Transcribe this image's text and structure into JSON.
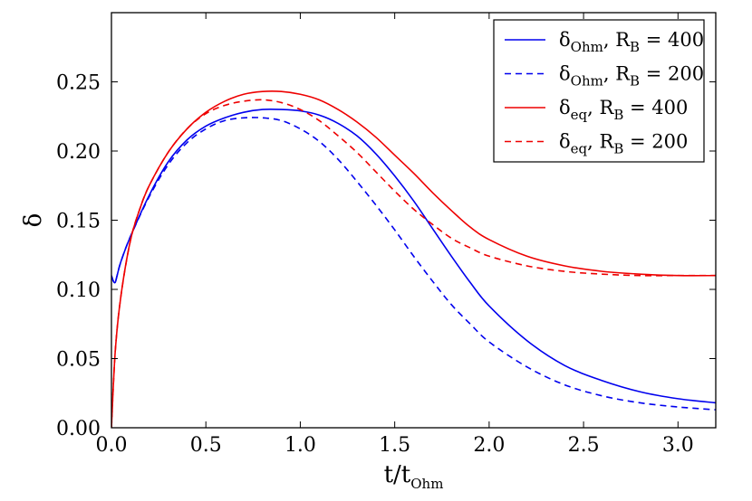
{
  "chart_data": {
    "type": "line",
    "title": "",
    "xlabel": "t/t",
    "xlabel_sub": "Ohm",
    "ylabel": "δ",
    "xlim": [
      0.0,
      3.2
    ],
    "ylim": [
      0.0,
      0.3
    ],
    "xticks": [
      0.0,
      0.5,
      1.0,
      1.5,
      2.0,
      2.5,
      3.0
    ],
    "xtick_labels": [
      "0.0",
      "0.5",
      "1.0",
      "1.5",
      "2.0",
      "2.5",
      "3.0"
    ],
    "yticks": [
      0.0,
      0.05,
      0.1,
      0.15,
      0.2,
      0.25
    ],
    "ytick_labels": [
      "0.00",
      "0.05",
      "0.10",
      "0.15",
      "0.20",
      "0.25"
    ],
    "grid": false,
    "legend_position": "top-right",
    "series": [
      {
        "name": "δOhm, RB = 400",
        "legend": {
          "symbol": "δ",
          "sub": "Ohm",
          "rest": ", R",
          "rest_sub": "B",
          "value": " = 400"
        },
        "color": "#0000ee",
        "dash": "solid",
        "x": [
          0.0,
          0.01,
          0.02,
          0.03,
          0.05,
          0.1,
          0.2,
          0.3,
          0.4,
          0.5,
          0.6,
          0.7,
          0.8,
          0.9,
          1.0,
          1.1,
          1.2,
          1.3,
          1.4,
          1.5,
          1.6,
          1.7,
          1.8,
          1.9,
          2.0,
          2.2,
          2.4,
          2.6,
          2.8,
          3.0,
          3.2
        ],
        "y": [
          0.11,
          0.106,
          0.105,
          0.11,
          0.12,
          0.138,
          0.168,
          0.192,
          0.208,
          0.218,
          0.224,
          0.228,
          0.23,
          0.23,
          0.229,
          0.226,
          0.22,
          0.211,
          0.198,
          0.182,
          0.164,
          0.144,
          0.124,
          0.105,
          0.088,
          0.063,
          0.045,
          0.034,
          0.026,
          0.021,
          0.018
        ]
      },
      {
        "name": "δOhm, RB = 200",
        "legend": {
          "symbol": "δ",
          "sub": "Ohm",
          "rest": ", R",
          "rest_sub": "B",
          "value": " = 200"
        },
        "color": "#0000ee",
        "dash": "dashed",
        "x": [
          0.0,
          0.01,
          0.02,
          0.03,
          0.05,
          0.1,
          0.2,
          0.3,
          0.4,
          0.5,
          0.6,
          0.7,
          0.8,
          0.9,
          1.0,
          1.1,
          1.2,
          1.3,
          1.4,
          1.5,
          1.6,
          1.7,
          1.8,
          1.9,
          2.0,
          2.2,
          2.4,
          2.6,
          2.8,
          3.0,
          3.2
        ],
        "y": [
          0.11,
          0.106,
          0.105,
          0.11,
          0.12,
          0.138,
          0.167,
          0.19,
          0.206,
          0.216,
          0.222,
          0.224,
          0.224,
          0.222,
          0.216,
          0.207,
          0.194,
          0.178,
          0.161,
          0.143,
          0.124,
          0.106,
          0.089,
          0.075,
          0.062,
          0.044,
          0.031,
          0.023,
          0.018,
          0.015,
          0.013
        ]
      },
      {
        "name": "δeq, RB = 400",
        "legend": {
          "symbol": "δ",
          "sub": "eq",
          "rest": ", R",
          "rest_sub": "B",
          "value": " = 400"
        },
        "color": "#ee0000",
        "dash": "solid",
        "x": [
          0.0,
          0.02,
          0.05,
          0.1,
          0.15,
          0.2,
          0.3,
          0.4,
          0.5,
          0.6,
          0.7,
          0.8,
          0.9,
          1.0,
          1.1,
          1.2,
          1.3,
          1.4,
          1.5,
          1.6,
          1.7,
          1.8,
          1.9,
          2.0,
          2.2,
          2.4,
          2.6,
          2.8,
          3.0,
          3.2
        ],
        "y": [
          0.0,
          0.055,
          0.095,
          0.135,
          0.158,
          0.175,
          0.199,
          0.216,
          0.228,
          0.236,
          0.241,
          0.243,
          0.243,
          0.241,
          0.237,
          0.23,
          0.221,
          0.21,
          0.197,
          0.184,
          0.17,
          0.157,
          0.145,
          0.136,
          0.124,
          0.117,
          0.113,
          0.111,
          0.11,
          0.11
        ]
      },
      {
        "name": "δeq, RB = 200",
        "legend": {
          "symbol": "δ",
          "sub": "eq",
          "rest": ", R",
          "rest_sub": "B",
          "value": " = 200"
        },
        "color": "#ee0000",
        "dash": "dashed",
        "x": [
          0.0,
          0.02,
          0.05,
          0.1,
          0.15,
          0.2,
          0.3,
          0.4,
          0.5,
          0.6,
          0.7,
          0.8,
          0.9,
          1.0,
          1.1,
          1.2,
          1.3,
          1.4,
          1.5,
          1.6,
          1.7,
          1.8,
          1.9,
          2.0,
          2.2,
          2.4,
          2.6,
          2.8,
          3.0,
          3.2
        ],
        "y": [
          0.0,
          0.055,
          0.095,
          0.135,
          0.158,
          0.175,
          0.199,
          0.216,
          0.227,
          0.233,
          0.236,
          0.237,
          0.235,
          0.23,
          0.222,
          0.211,
          0.199,
          0.185,
          0.171,
          0.158,
          0.147,
          0.137,
          0.13,
          0.124,
          0.117,
          0.113,
          0.111,
          0.11,
          0.11,
          0.11
        ]
      }
    ]
  }
}
